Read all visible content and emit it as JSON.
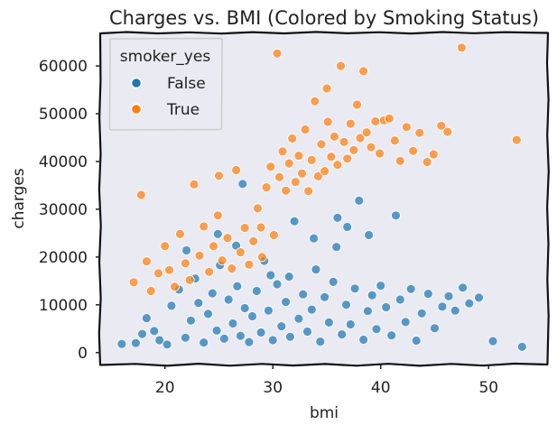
{
  "chart_data": {
    "type": "scatter",
    "title": "Charges vs. BMI (Colored by Smoking Status)",
    "xlabel": "bmi",
    "ylabel": "charges",
    "xlim": [
      14,
      55.5
    ],
    "ylim": [
      -2500,
      67000
    ],
    "xticks": [
      20,
      30,
      40,
      50
    ],
    "yticks": [
      0,
      10000,
      20000,
      30000,
      40000,
      50000,
      60000
    ],
    "grid": false,
    "legend": {
      "title": "smoker_yes",
      "placement": "top-left",
      "entries": [
        {
          "label": "False",
          "color": "#1f77b4"
        },
        {
          "label": "True",
          "color": "#ff7f0e"
        }
      ]
    },
    "series": [
      {
        "name": "False",
        "color": "#1f77b4",
        "points": [
          [
            16.0,
            1800
          ],
          [
            17.3,
            2000
          ],
          [
            17.9,
            3900
          ],
          [
            18.3,
            7200
          ],
          [
            19.0,
            4500
          ],
          [
            19.5,
            2600
          ],
          [
            20.2,
            1700
          ],
          [
            20.6,
            9800
          ],
          [
            21.3,
            13200
          ],
          [
            21.9,
            3100
          ],
          [
            22.4,
            6700
          ],
          [
            22.8,
            15500
          ],
          [
            23.1,
            10400
          ],
          [
            23.6,
            2100
          ],
          [
            24.0,
            8100
          ],
          [
            24.4,
            12400
          ],
          [
            24.8,
            4600
          ],
          [
            25.1,
            18300
          ],
          [
            25.5,
            2900
          ],
          [
            25.9,
            11100
          ],
          [
            26.3,
            6100
          ],
          [
            26.7,
            13900
          ],
          [
            27.0,
            3500
          ],
          [
            27.4,
            9300
          ],
          [
            27.8,
            2200
          ],
          [
            28.1,
            7600
          ],
          [
            28.5,
            12900
          ],
          [
            28.9,
            4200
          ],
          [
            29.2,
            19200
          ],
          [
            29.6,
            8800
          ],
          [
            30.0,
            2600
          ],
          [
            30.4,
            14300
          ],
          [
            30.8,
            5500
          ],
          [
            31.2,
            10600
          ],
          [
            31.6,
            3300
          ],
          [
            32.0,
            27500
          ],
          [
            32.4,
            7100
          ],
          [
            32.8,
            12200
          ],
          [
            33.2,
            4400
          ],
          [
            33.6,
            9000
          ],
          [
            34.0,
            17400
          ],
          [
            34.4,
            2300
          ],
          [
            34.8,
            11600
          ],
          [
            35.2,
            6300
          ],
          [
            35.6,
            14800
          ],
          [
            36.0,
            28200
          ],
          [
            36.4,
            3800
          ],
          [
            36.8,
            10000
          ],
          [
            37.2,
            5900
          ],
          [
            37.6,
            13400
          ],
          [
            38.0,
            31800
          ],
          [
            38.4,
            2700
          ],
          [
            38.8,
            8700
          ],
          [
            39.2,
            12000
          ],
          [
            39.6,
            4900
          ],
          [
            40.0,
            14000
          ],
          [
            40.5,
            9500
          ],
          [
            41.0,
            3600
          ],
          [
            41.4,
            28700
          ],
          [
            41.8,
            11100
          ],
          [
            42.3,
            6400
          ],
          [
            42.8,
            13300
          ],
          [
            43.3,
            2500
          ],
          [
            43.8,
            8200
          ],
          [
            44.4,
            12300
          ],
          [
            45.0,
            5100
          ],
          [
            45.7,
            9600
          ],
          [
            46.3,
            11800
          ],
          [
            46.9,
            8800
          ],
          [
            47.6,
            13600
          ],
          [
            48.2,
            10300
          ],
          [
            49.1,
            11500
          ],
          [
            50.4,
            2400
          ],
          [
            53.1,
            1200
          ],
          [
            22.0,
            21400
          ],
          [
            24.9,
            24800
          ],
          [
            26.6,
            22400
          ],
          [
            33.8,
            23900
          ],
          [
            36.9,
            26300
          ],
          [
            38.9,
            24600
          ],
          [
            29.8,
            16200
          ],
          [
            31.5,
            15900
          ],
          [
            27.2,
            35300
          ],
          [
            35.9,
            22100
          ]
        ]
      },
      {
        "name": "True",
        "color": "#ff7f0e",
        "points": [
          [
            17.1,
            14700
          ],
          [
            17.8,
            33000
          ],
          [
            18.3,
            19100
          ],
          [
            18.7,
            12900
          ],
          [
            19.4,
            16600
          ],
          [
            20.0,
            22300
          ],
          [
            20.4,
            17300
          ],
          [
            20.9,
            13800
          ],
          [
            21.4,
            24800
          ],
          [
            21.9,
            18700
          ],
          [
            22.3,
            15200
          ],
          [
            22.7,
            35200
          ],
          [
            23.2,
            20300
          ],
          [
            23.6,
            26400
          ],
          [
            24.1,
            16900
          ],
          [
            24.5,
            22300
          ],
          [
            24.9,
            28700
          ],
          [
            25.3,
            19300
          ],
          [
            25.8,
            24000
          ],
          [
            26.2,
            17600
          ],
          [
            26.6,
            38200
          ],
          [
            27.0,
            21000
          ],
          [
            27.4,
            26100
          ],
          [
            27.8,
            18400
          ],
          [
            28.2,
            23300
          ],
          [
            28.6,
            30200
          ],
          [
            29.0,
            20000
          ],
          [
            29.4,
            34600
          ],
          [
            29.8,
            38900
          ],
          [
            30.1,
            24600
          ],
          [
            30.4,
            62600
          ],
          [
            30.6,
            36700
          ],
          [
            30.9,
            42100
          ],
          [
            31.2,
            33900
          ],
          [
            31.5,
            39600
          ],
          [
            31.8,
            44800
          ],
          [
            32.1,
            35700
          ],
          [
            32.4,
            41200
          ],
          [
            32.7,
            37500
          ],
          [
            33.0,
            46700
          ],
          [
            33.3,
            33800
          ],
          [
            33.6,
            40300
          ],
          [
            33.9,
            52600
          ],
          [
            34.2,
            36900
          ],
          [
            34.5,
            43600
          ],
          [
            34.8,
            38000
          ],
          [
            35.1,
            48300
          ],
          [
            35.4,
            41000
          ],
          [
            35.7,
            45200
          ],
          [
            36.0,
            39300
          ],
          [
            36.3,
            60000
          ],
          [
            36.6,
            44100
          ],
          [
            36.9,
            40600
          ],
          [
            37.2,
            47900
          ],
          [
            37.5,
            42400
          ],
          [
            37.8,
            51900
          ],
          [
            38.1,
            44900
          ],
          [
            38.4,
            58900
          ],
          [
            38.7,
            46100
          ],
          [
            39.1,
            43000
          ],
          [
            39.5,
            48400
          ],
          [
            39.9,
            41700
          ],
          [
            40.3,
            48600
          ],
          [
            40.8,
            49000
          ],
          [
            41.3,
            44400
          ],
          [
            41.8,
            40100
          ],
          [
            42.4,
            47200
          ],
          [
            43.0,
            42200
          ],
          [
            43.6,
            46000
          ],
          [
            44.3,
            39900
          ],
          [
            44.9,
            41500
          ],
          [
            45.6,
            47500
          ],
          [
            46.2,
            46200
          ],
          [
            47.5,
            63800
          ],
          [
            52.6,
            44500
          ],
          [
            35.0,
            55300
          ],
          [
            25.0,
            37000
          ],
          [
            28.9,
            26200
          ]
        ]
      }
    ]
  }
}
